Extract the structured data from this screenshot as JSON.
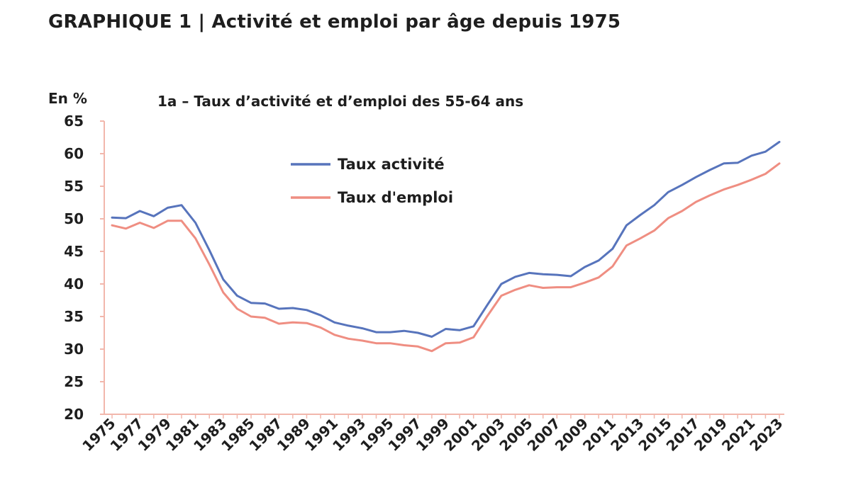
{
  "title": "GRAPHIQUE 1 | Activité et emploi par âge depuis 1975",
  "chart_data": {
    "type": "line",
    "title": "1a – Taux d’activité et d’emploi des 55-64 ans",
    "unit_label": "En %",
    "ylim": [
      20,
      65
    ],
    "yticks": [
      20,
      25,
      30,
      35,
      40,
      45,
      50,
      55,
      60,
      65
    ],
    "x": [
      1975,
      1976,
      1977,
      1978,
      1979,
      1980,
      1981,
      1982,
      1983,
      1984,
      1985,
      1986,
      1987,
      1988,
      1989,
      1990,
      1991,
      1992,
      1993,
      1994,
      1995,
      1996,
      1997,
      1998,
      1999,
      2000,
      2001,
      2002,
      2003,
      2004,
      2005,
      2006,
      2007,
      2008,
      2009,
      2010,
      2011,
      2012,
      2013,
      2014,
      2015,
      2016,
      2017,
      2018,
      2019,
      2020,
      2021,
      2022,
      2023
    ],
    "xtick_labels": [
      "1975",
      "1977",
      "1979",
      "1981",
      "1983",
      "1985",
      "1987",
      "1989",
      "1991",
      "1993",
      "1995",
      "1997",
      "1999",
      "2001",
      "2003",
      "2005",
      "2007",
      "2009",
      "2011",
      "2013",
      "2015",
      "2017",
      "2019",
      "2021",
      "2023"
    ],
    "grid": false,
    "legend_position": "top-center",
    "series": [
      {
        "name": "Taux activité",
        "color": "#5774bc",
        "values": [
          50.2,
          50.1,
          51.2,
          50.4,
          51.7,
          52.1,
          49.4,
          45.2,
          40.7,
          38.2,
          37.1,
          37.0,
          36.2,
          36.3,
          36.0,
          35.2,
          34.1,
          33.6,
          33.2,
          32.6,
          32.6,
          32.8,
          32.5,
          31.9,
          33.1,
          32.9,
          33.5,
          36.8,
          40.0,
          41.1,
          41.7,
          41.5,
          41.4,
          41.2,
          42.6,
          43.6,
          45.4,
          49.0,
          50.6,
          52.1,
          54.1,
          55.2,
          56.4,
          57.5,
          58.5,
          58.6,
          59.7,
          60.3,
          61.8
        ]
      },
      {
        "name": "Taux d'emploi",
        "color": "#ef8e82",
        "values": [
          49.0,
          48.5,
          49.4,
          48.6,
          49.7,
          49.7,
          47.0,
          43.0,
          38.7,
          36.2,
          35.0,
          34.8,
          33.9,
          34.1,
          34.0,
          33.3,
          32.2,
          31.6,
          31.3,
          30.9,
          30.9,
          30.6,
          30.4,
          29.7,
          30.9,
          31.0,
          31.8,
          35.1,
          38.2,
          39.1,
          39.8,
          39.4,
          39.5,
          39.5,
          40.2,
          41.0,
          42.7,
          45.9,
          47.0,
          48.2,
          50.1,
          51.2,
          52.6,
          53.6,
          54.5,
          55.2,
          56.0,
          56.9,
          58.5
        ]
      }
    ]
  }
}
